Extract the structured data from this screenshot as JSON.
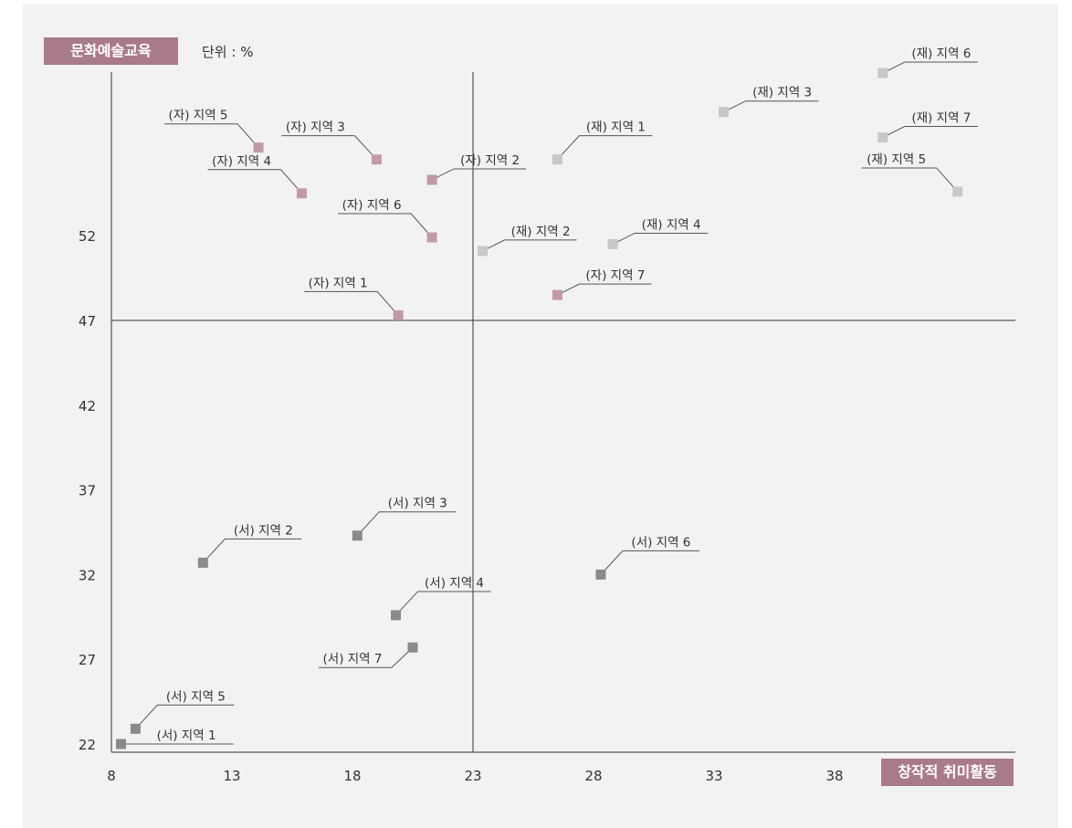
{
  "chart_data": {
    "type": "scatter",
    "ylabel": "문화예술교육",
    "xlabel": "창작적 취미활동",
    "unit": "단위 : %",
    "x_ticks": [
      8,
      13,
      18,
      23,
      28,
      33,
      38
    ],
    "y_ticks": [
      22,
      27,
      32,
      37,
      42,
      47,
      52
    ],
    "xlim": [
      8,
      43
    ],
    "ylim": [
      21.5,
      62
    ],
    "reference_lines": {
      "x": 23,
      "y": 47
    },
    "grid": false,
    "series": [
      {
        "color": "#c09aa8",
        "points": [
          {
            "label": "(자) 지역 1",
            "x": 19.9,
            "y": 47.3
          },
          {
            "label": "(자) 지역 2",
            "x": 21.3,
            "y": 55.3
          },
          {
            "label": "(자) 지역 3",
            "x": 19.0,
            "y": 56.5
          },
          {
            "label": "(자) 지역 4",
            "x": 15.9,
            "y": 54.5
          },
          {
            "label": "(자) 지역 5",
            "x": 14.1,
            "y": 57.2
          },
          {
            "label": "(자) 지역 6",
            "x": 21.3,
            "y": 51.9
          },
          {
            "label": "(자) 지역 7",
            "x": 26.5,
            "y": 48.5
          }
        ]
      },
      {
        "color": "#c8c8ca",
        "points": [
          {
            "label": "(재) 지역 1",
            "x": 26.5,
            "y": 56.5
          },
          {
            "label": "(재) 지역 2",
            "x": 23.4,
            "y": 51.1
          },
          {
            "label": "(재) 지역 3",
            "x": 33.4,
            "y": 59.3
          },
          {
            "label": "(재) 지역 4",
            "x": 28.8,
            "y": 51.5
          },
          {
            "label": "(재) 지역 5",
            "x": 43.1,
            "y": 54.6
          },
          {
            "label": "(재) 지역 6",
            "x": 40.0,
            "y": 61.6
          },
          {
            "label": "(재) 지역 7",
            "x": 40.0,
            "y": 57.8
          }
        ]
      },
      {
        "color": "#8a8a8c",
        "points": [
          {
            "label": "(서) 지역 1",
            "x": 8.4,
            "y": 22.0
          },
          {
            "label": "(서) 지역 2",
            "x": 11.8,
            "y": 32.7
          },
          {
            "label": "(서) 지역 3",
            "x": 18.2,
            "y": 34.3
          },
          {
            "label": "(서) 지역 4",
            "x": 19.8,
            "y": 29.6
          },
          {
            "label": "(서) 지역 5",
            "x": 9.0,
            "y": 22.9
          },
          {
            "label": "(서) 지역 6",
            "x": 28.3,
            "y": 32.0
          },
          {
            "label": "(서) 지역 7",
            "x": 20.5,
            "y": 27.7
          }
        ]
      }
    ]
  },
  "colors": {
    "background": "#f2f2f4",
    "badge": "#a97a87",
    "axis": "#333333",
    "leader": "#555555",
    "text": "#333333"
  }
}
